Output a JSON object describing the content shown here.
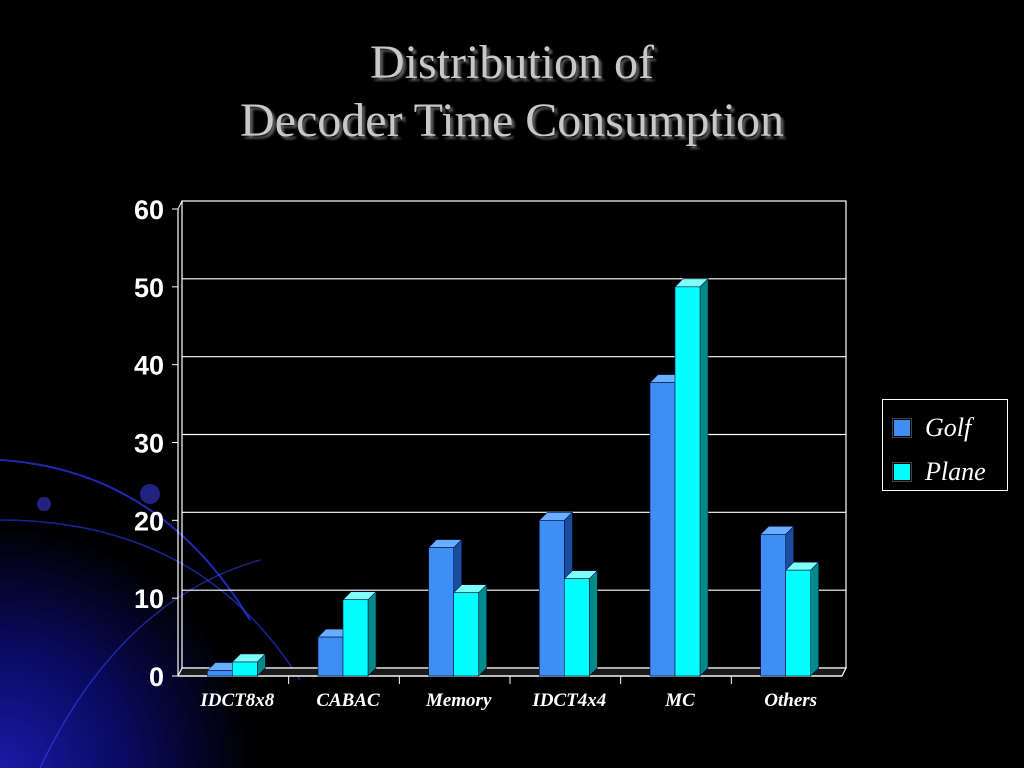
{
  "title": {
    "line1": "Distribution of",
    "line2": "Decoder Time Consumption"
  },
  "colors": {
    "background": "#000000",
    "golf_front": "#3d8ef5",
    "golf_side": "#1a4d9e",
    "golf_top": "#6aaeff",
    "plane_front": "#00ffff",
    "plane_side": "#008b8b",
    "plane_top": "#7ffff8",
    "grid": "#ffffff",
    "axis_text": "#ffffff"
  },
  "chart_data": {
    "type": "bar",
    "style": "3d-clustered-column",
    "categories": [
      "IDCT8x8",
      "CABAC",
      "Memory",
      "IDCT4x4",
      "MC",
      "Others"
    ],
    "series": [
      {
        "name": "Golf",
        "values": [
          0.7,
          5,
          16.5,
          20,
          37.7,
          18.2
        ]
      },
      {
        "name": "Plane",
        "values": [
          1.8,
          9.8,
          10.7,
          12.5,
          50,
          13.6
        ]
      }
    ],
    "ylim": [
      0,
      60
    ],
    "yticks": [
      "0",
      "10",
      "20",
      "30",
      "40",
      "50",
      "60"
    ],
    "grid": true,
    "legend_position": "right"
  }
}
